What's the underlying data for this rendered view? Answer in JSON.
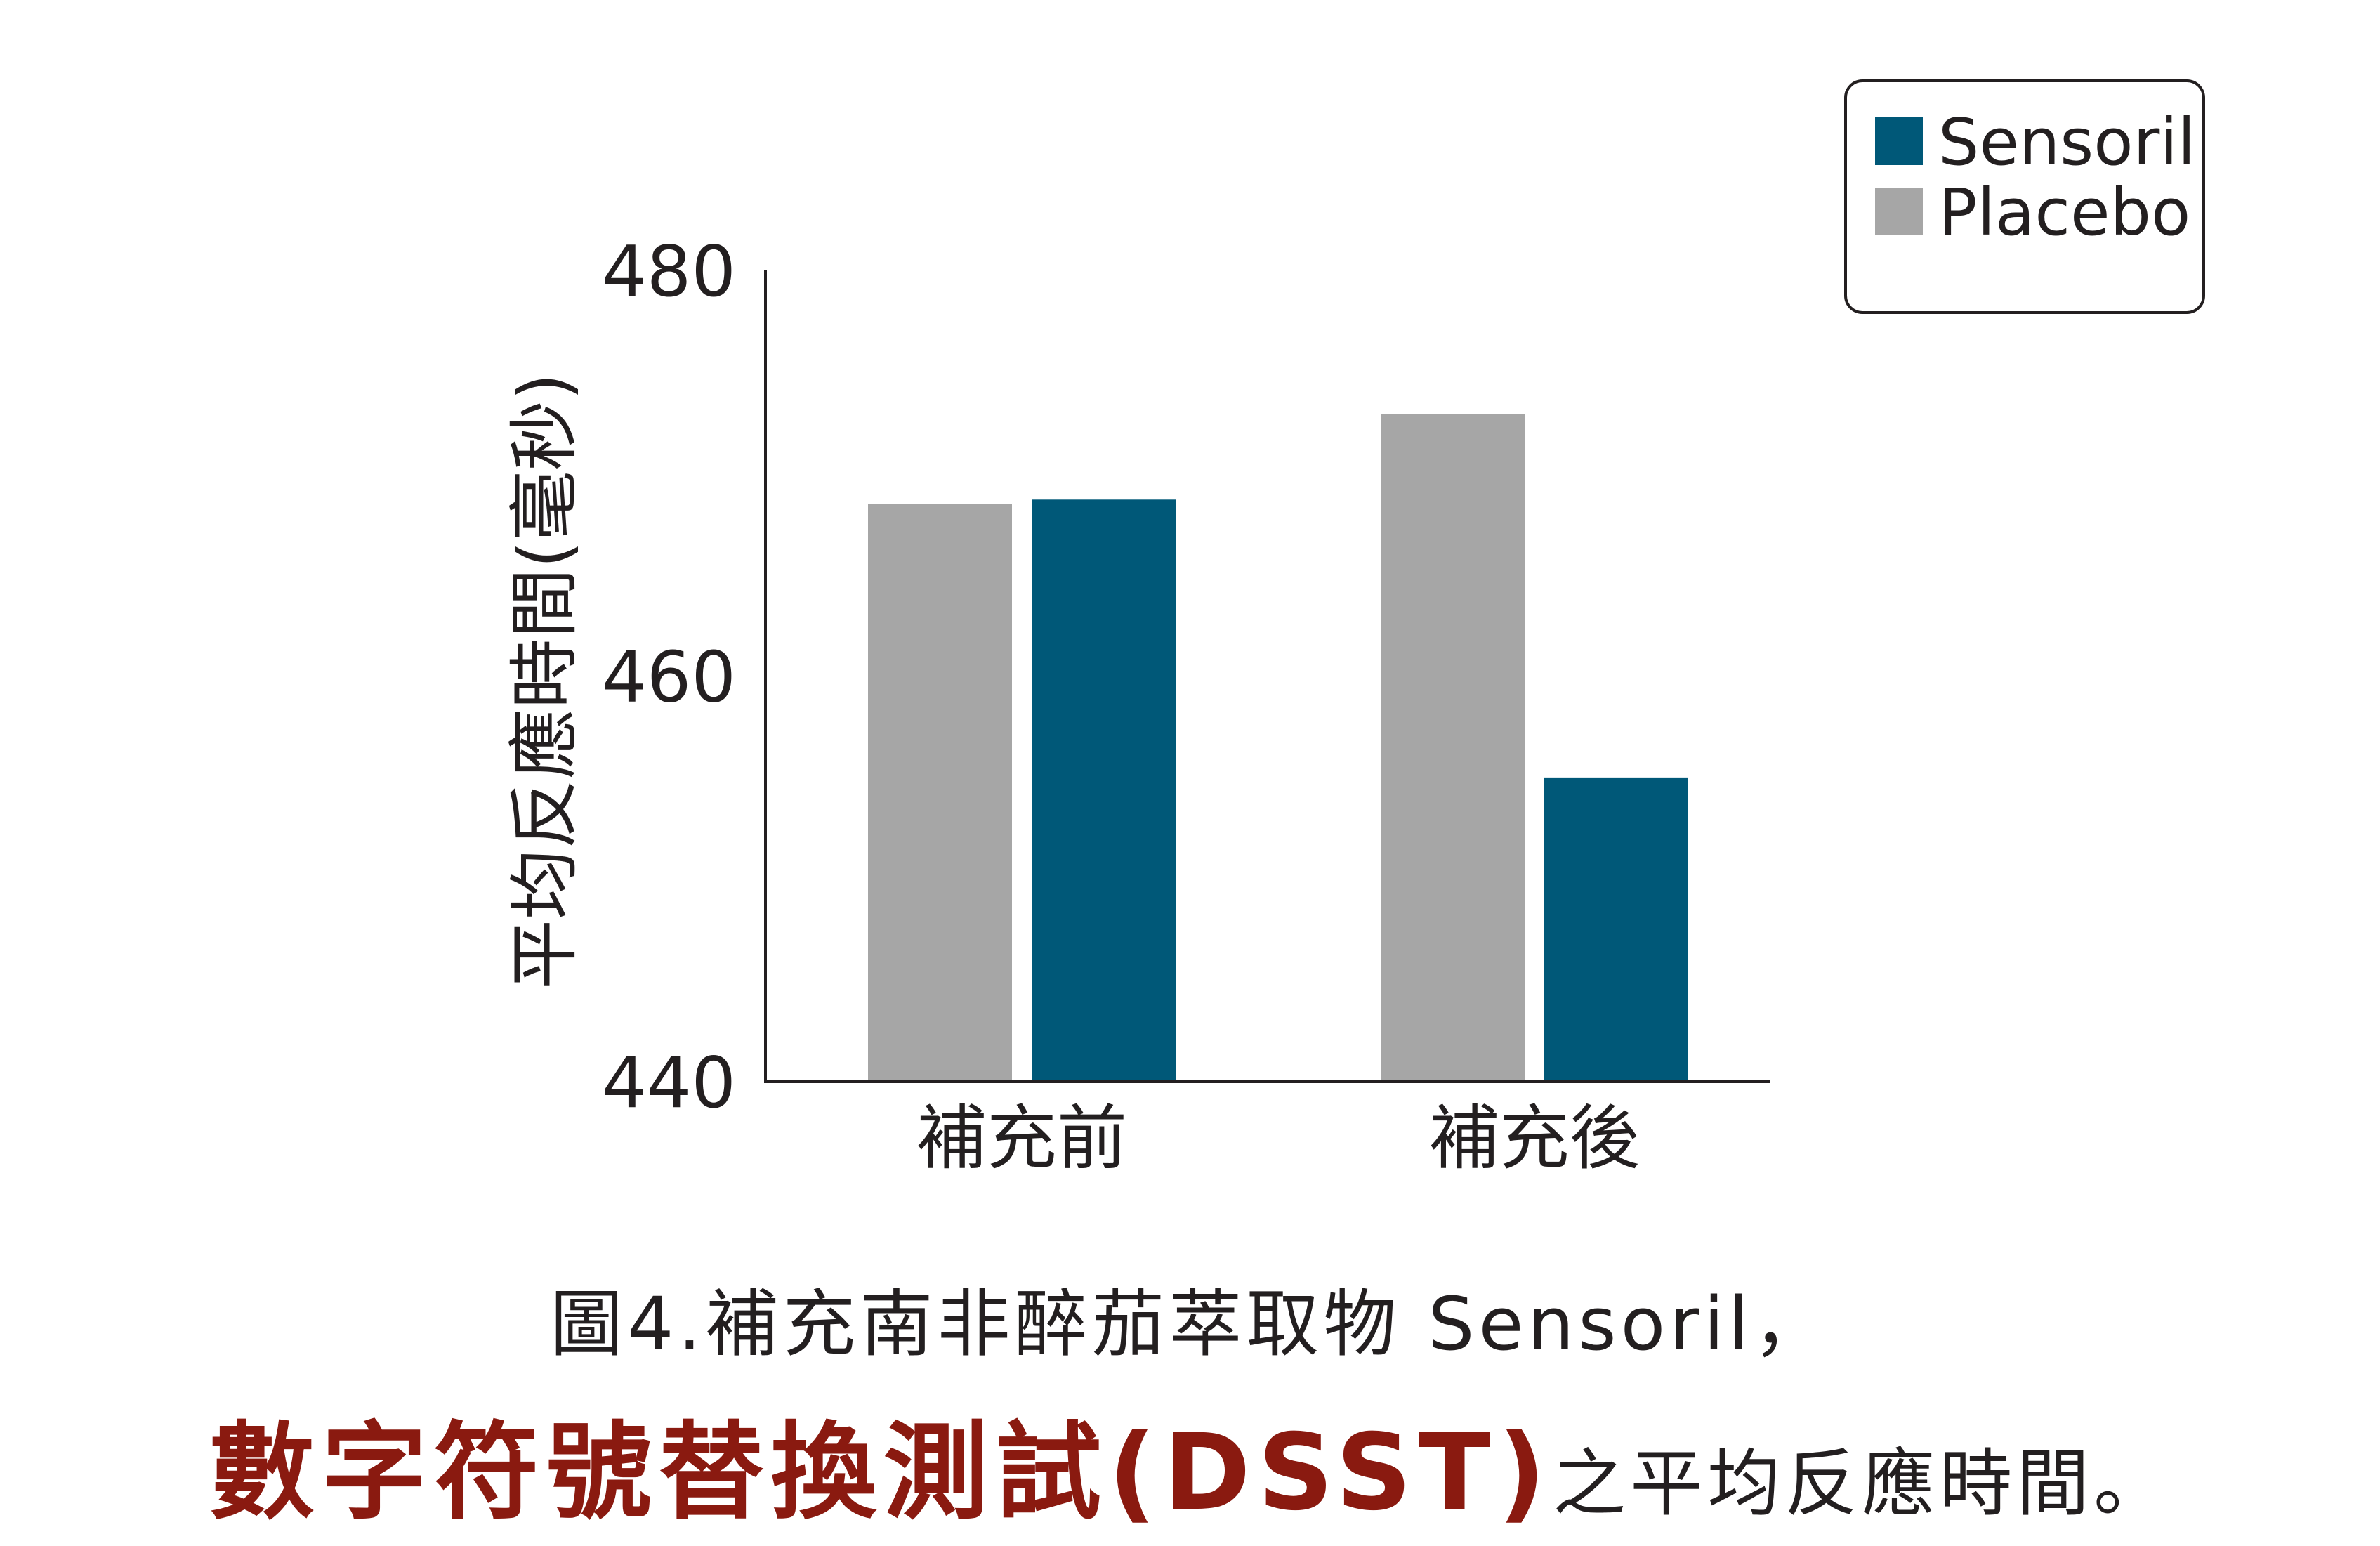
{
  "chart_data": {
    "type": "bar",
    "categories": [
      "補充前",
      "補充後"
    ],
    "series": [
      {
        "name": "Placebo",
        "values": [
          468.5,
          472.9
        ],
        "color": "#a6a6a6"
      },
      {
        "name": "Sensoril",
        "values": [
          468.7,
          455.0
        ],
        "color": "#005878"
      }
    ],
    "legend_order": [
      "Sensoril",
      "Placebo"
    ],
    "ylabel": "平均反應時間(毫秒)",
    "ylim": [
      440,
      480
    ],
    "yticks": [
      440,
      460,
      480
    ],
    "legend_position": "top-right",
    "grid": false
  },
  "caption": {
    "line1": "圖4.補充南非醉茄萃取物 Sensoril，",
    "line2_emphasis": "數字符號替換測試(DSST)",
    "line2_rest": "之平均反應時間。"
  }
}
